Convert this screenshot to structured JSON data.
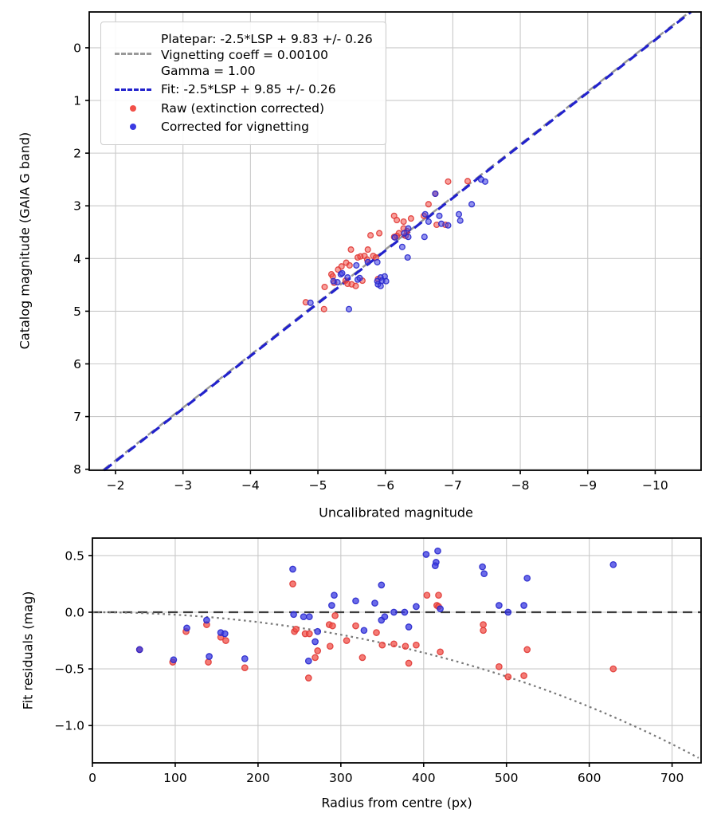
{
  "colors": {
    "raw": "#f25048",
    "raw_edge": "#e03a36",
    "corrected": "#3a3ae2",
    "corrected_edge": "#2828cc",
    "fit_line": "#2222cc",
    "platepar_line": "#999999",
    "zero_line": "#3d3d3d",
    "vignetting_curve": "#787878",
    "grid": "#c9c9c9",
    "frame": "#000000"
  },
  "chart_data": [
    {
      "type": "scatter",
      "title": "",
      "xlabel": "Uncalibrated magnitude",
      "ylabel": "Catalog magnitude (GAIA G band)",
      "xlim": [
        -1.61,
        -10.68
      ],
      "ylim_top_to_bottom": [
        -0.68,
        8.02
      ],
      "x_axis_inverted": true,
      "y_axis_inverted": true,
      "grid": true,
      "xticks": [
        -2,
        -3,
        -4,
        -5,
        -6,
        -7,
        -8,
        -9,
        -10
      ],
      "xtick_labels": [
        "−2",
        "−3",
        "−4",
        "−5",
        "−6",
        "−7",
        "−8",
        "−9",
        "−10"
      ],
      "yticks": [
        0,
        1,
        2,
        3,
        4,
        5,
        6,
        7,
        8
      ],
      "ytick_labels": [
        "0",
        "1",
        "2",
        "3",
        "4",
        "5",
        "6",
        "7",
        "8"
      ],
      "legend_position": "upper left",
      "legend": [
        {
          "label": "Platepar: -2.5*LSP + 9.83 +/- 0.26\nVignetting coeff = 0.00100\nGamma = 1.00",
          "style": "dashed-line",
          "color_key": "platepar_line"
        },
        {
          "label": "Fit: -2.5*LSP + 9.85 +/- 0.26",
          "style": "dashed-line",
          "color_key": "fit_line"
        },
        {
          "label": "Raw (extinction corrected)",
          "style": "marker",
          "color_key": "raw"
        },
        {
          "label": "Corrected for vignetting",
          "style": "marker",
          "color_key": "corrected"
        }
      ],
      "lines": [
        {
          "name": "platepar",
          "equation": "y = x + 9.83",
          "slope": 1,
          "intercept": 9.83,
          "color_key": "platepar_line",
          "width": 2.5,
          "dash": "11 7"
        },
        {
          "name": "fit",
          "equation": "y = x + 9.85",
          "slope": 1,
          "intercept": 9.85,
          "color_key": "fit_line",
          "width": 3.2,
          "dash": "12 7"
        }
      ],
      "series": [
        {
          "name": "Raw (extinction corrected)",
          "color_key": "raw",
          "edge_key": "raw_edge",
          "points": [
            [
              -4.82,
              4.83
            ],
            [
              -5.09,
              4.96
            ],
            [
              -5.1,
              4.54
            ],
            [
              -5.2,
              4.3
            ],
            [
              -5.22,
              4.34
            ],
            [
              -5.24,
              4.46
            ],
            [
              -5.3,
              4.21
            ],
            [
              -5.35,
              4.15
            ],
            [
              -5.42,
              4.08
            ],
            [
              -5.47,
              4.13
            ],
            [
              -5.41,
              4.42
            ],
            [
              -5.44,
              4.48
            ],
            [
              -5.5,
              4.49
            ],
            [
              -5.56,
              4.52
            ],
            [
              -5.59,
              3.98
            ],
            [
              -5.63,
              3.96
            ],
            [
              -5.69,
              3.95
            ],
            [
              -5.66,
              4.42
            ],
            [
              -5.73,
              4.02
            ],
            [
              -5.82,
              3.95
            ],
            [
              -5.86,
              3.98
            ],
            [
              -5.89,
              4.39
            ],
            [
              -5.49,
              3.83
            ],
            [
              -5.74,
              3.83
            ],
            [
              -5.78,
              3.56
            ],
            [
              -5.91,
              3.52
            ],
            [
              -6.13,
              3.19
            ],
            [
              -6.17,
              3.27
            ],
            [
              -6.27,
              3.3
            ],
            [
              -6.38,
              3.24
            ],
            [
              -6.27,
              3.43
            ],
            [
              -6.32,
              3.48
            ],
            [
              -6.2,
              3.52
            ],
            [
              -6.17,
              3.57
            ],
            [
              -6.57,
              3.19
            ],
            [
              -6.64,
              2.97
            ],
            [
              -6.93,
              2.54
            ],
            [
              -7.22,
              2.53
            ],
            [
              -6.74,
              2.77
            ],
            [
              -6.13,
              3.59
            ],
            [
              -6.76,
              3.36
            ],
            [
              -6.89,
              3.36
            ],
            [
              -6.3,
              3.57
            ]
          ]
        },
        {
          "name": "Corrected for vignetting",
          "color_key": "corrected",
          "edge_key": "corrected_edge",
          "points": [
            [
              -4.89,
              4.84
            ],
            [
              -5.46,
              4.96
            ],
            [
              -5.34,
              4.3
            ],
            [
              -5.29,
              4.45
            ],
            [
              -5.36,
              4.28
            ],
            [
              -5.44,
              4.36
            ],
            [
              -5.59,
              4.4
            ],
            [
              -5.62,
              4.37
            ],
            [
              -5.57,
              4.13
            ],
            [
              -5.74,
              4.07
            ],
            [
              -5.88,
              4.07
            ],
            [
              -5.93,
              4.36
            ],
            [
              -5.99,
              4.34
            ],
            [
              -5.89,
              4.49
            ],
            [
              -5.93,
              4.52
            ],
            [
              -5.88,
              4.43
            ],
            [
              -5.95,
              4.42
            ],
            [
              -6.01,
              4.43
            ],
            [
              -6.33,
              3.98
            ],
            [
              -6.25,
              3.78
            ],
            [
              -6.34,
              3.59
            ],
            [
              -6.58,
              3.59
            ],
            [
              -6.14,
              3.6
            ],
            [
              -6.59,
              3.16
            ],
            [
              -6.64,
              3.3
            ],
            [
              -6.8,
              3.19
            ],
            [
              -6.83,
              3.34
            ],
            [
              -6.93,
              3.37
            ],
            [
              -7.09,
              3.16
            ],
            [
              -7.11,
              3.28
            ],
            [
              -7.28,
              2.97
            ],
            [
              -7.42,
              2.5
            ],
            [
              -7.48,
              2.54
            ],
            [
              -6.74,
              2.77
            ],
            [
              -6.28,
              3.52
            ],
            [
              -5.23,
              4.43
            ],
            [
              -6.34,
              3.43
            ]
          ]
        }
      ]
    },
    {
      "type": "scatter",
      "title": "",
      "xlabel": "Radius from centre (px)",
      "ylabel": "Fit residuals (mag)",
      "xlim": [
        0,
        735
      ],
      "ylim_top_to_bottom": [
        0.654,
        -1.329
      ],
      "grid": true,
      "xticks": [
        0,
        100,
        200,
        300,
        400,
        500,
        600,
        700
      ],
      "xtick_labels": [
        "0",
        "100",
        "200",
        "300",
        "400",
        "500",
        "600",
        "700"
      ],
      "yticks": [
        0.5,
        0.0,
        -0.5,
        -1.0
      ],
      "ytick_labels": [
        "0.5",
        "0.0",
        "−0.5",
        "−1.0"
      ],
      "zero_line_y": 0.0,
      "vignetting_curve": {
        "formula": "mag_loss(r) = 10*log10(cos(0.001*r))",
        "coeff": 0.001,
        "color_key": "vignetting_curve"
      },
      "series": [
        {
          "name": "Raw (extinction corrected)",
          "color_key": "raw",
          "edge_key": "raw_edge",
          "points": [
            [
              57,
              -0.33
            ],
            [
              97,
              -0.44
            ],
            [
              113,
              -0.17
            ],
            [
              138,
              -0.11
            ],
            [
              140,
              -0.44
            ],
            [
              155,
              -0.22
            ],
            [
              161,
              -0.25
            ],
            [
              184,
              -0.49
            ],
            [
              242,
              0.25
            ],
            [
              244,
              -0.17
            ],
            [
              246,
              -0.15
            ],
            [
              257,
              -0.19
            ],
            [
              262,
              -0.19
            ],
            [
              261,
              -0.58
            ],
            [
              269,
              -0.4
            ],
            [
              272,
              -0.34
            ],
            [
              286,
              -0.11
            ],
            [
              290,
              -0.12
            ],
            [
              287,
              -0.3
            ],
            [
              293,
              -0.03
            ],
            [
              307,
              -0.25
            ],
            [
              318,
              -0.12
            ],
            [
              326,
              -0.4
            ],
            [
              343,
              -0.18
            ],
            [
              350,
              -0.29
            ],
            [
              364,
              -0.28
            ],
            [
              378,
              -0.3
            ],
            [
              382,
              -0.45
            ],
            [
              391,
              -0.29
            ],
            [
              404,
              0.15
            ],
            [
              416,
              0.06
            ],
            [
              418,
              0.15
            ],
            [
              418,
              0.05
            ],
            [
              420,
              -0.35
            ],
            [
              472,
              -0.11
            ],
            [
              472,
              -0.16
            ],
            [
              491,
              -0.48
            ],
            [
              502,
              -0.57
            ],
            [
              521,
              -0.56
            ],
            [
              525,
              -0.33
            ],
            [
              629,
              -0.5
            ]
          ]
        },
        {
          "name": "Corrected for vignetting",
          "color_key": "corrected",
          "edge_key": "corrected_edge",
          "points": [
            [
              57,
              -0.33
            ],
            [
              98,
              -0.42
            ],
            [
              114,
              -0.14
            ],
            [
              138,
              -0.07
            ],
            [
              141,
              -0.39
            ],
            [
              155,
              -0.18
            ],
            [
              160,
              -0.19
            ],
            [
              184,
              -0.41
            ],
            [
              242,
              0.38
            ],
            [
              243,
              -0.02
            ],
            [
              255,
              -0.04
            ],
            [
              262,
              -0.04
            ],
            [
              269,
              -0.26
            ],
            [
              272,
              -0.17
            ],
            [
              261,
              -0.43
            ],
            [
              289,
              0.06
            ],
            [
              292,
              0.15
            ],
            [
              318,
              0.1
            ],
            [
              328,
              -0.16
            ],
            [
              341,
              0.08
            ],
            [
              349,
              0.24
            ],
            [
              349,
              -0.07
            ],
            [
              353,
              -0.04
            ],
            [
              364,
              0.0
            ],
            [
              377,
              0.0
            ],
            [
              382,
              -0.13
            ],
            [
              391,
              0.05
            ],
            [
              403,
              0.51
            ],
            [
              417,
              0.54
            ],
            [
              415,
              0.44
            ],
            [
              414,
              0.41
            ],
            [
              420,
              0.03
            ],
            [
              471,
              0.4
            ],
            [
              473,
              0.34
            ],
            [
              491,
              0.06
            ],
            [
              502,
              0.0
            ],
            [
              521,
              0.06
            ],
            [
              525,
              0.3
            ],
            [
              629,
              0.42
            ]
          ]
        }
      ]
    }
  ]
}
